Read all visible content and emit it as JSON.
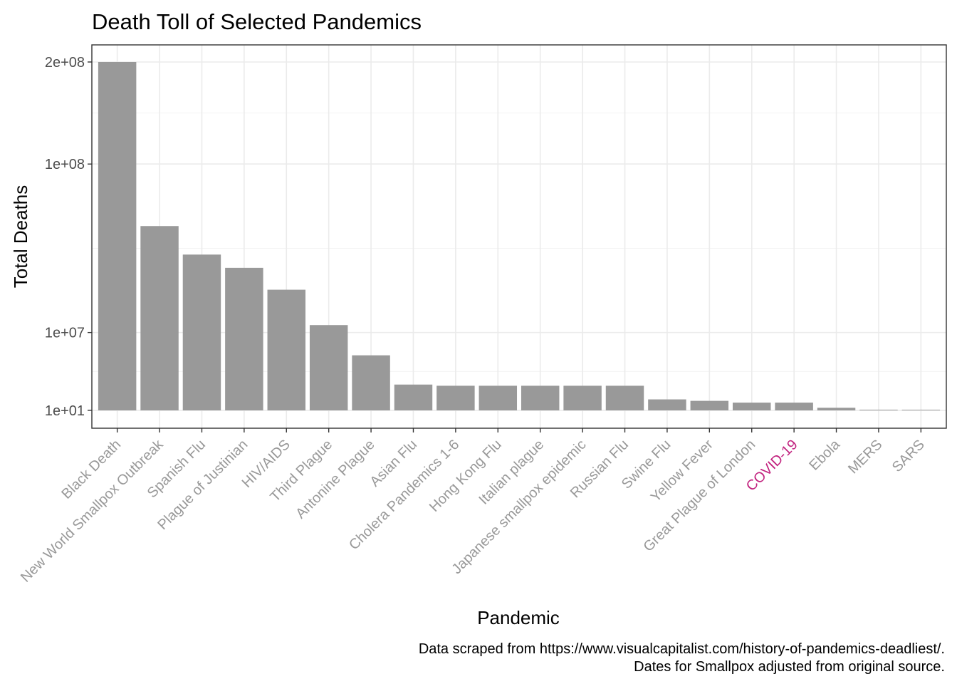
{
  "chart_data": {
    "type": "bar",
    "title": "Death Toll of Selected Pandemics",
    "xlabel": "Pandemic",
    "ylabel": "Total Deaths",
    "y_ticks": [
      {
        "value": 10,
        "label": "1e+01"
      },
      {
        "value": 10000000,
        "label": "1e+07"
      },
      {
        "value": 100000000,
        "label": "1e+08"
      },
      {
        "value": 200000000,
        "label": "2e+08"
      }
    ],
    "y_scale": "sqrt",
    "ylim": [
      0,
      200000000
    ],
    "grid": true,
    "bar_color": "#999999",
    "default_label_color": "#999999",
    "highlight_color": "#c2237f",
    "highlight_category": "COVID-19",
    "categories": [
      "Black Death",
      "New World Smallpox Outbreak",
      "Spanish Flu",
      "Plague of Justinian",
      "HIV/AIDS",
      "Third Plague",
      "Antonine Plague",
      "Asian Flu",
      "Cholera Pandemics 1-6",
      "Hong Kong Flu",
      "Italian plague",
      "Japanese smallpox epidemic",
      "Russian Flu",
      "Swine Flu",
      "Yellow Fever",
      "Great Plague of London",
      "COVID-19",
      "Ebola",
      "MERS",
      "SARS"
    ],
    "values": [
      200000000,
      56000000,
      40000000,
      33500000,
      24000000,
      12000000,
      5000000,
      1100000,
      1000000,
      1000000,
      1000000,
      1000000,
      1000000,
      200000,
      150000,
      100000,
      100000,
      11300,
      850,
      770
    ]
  },
  "caption": {
    "line1": "Data scraped from https://www.visualcapitalist.com/history-of-pandemics-deadliest/.",
    "line2": "Dates for Smallpox adjusted from original source."
  }
}
